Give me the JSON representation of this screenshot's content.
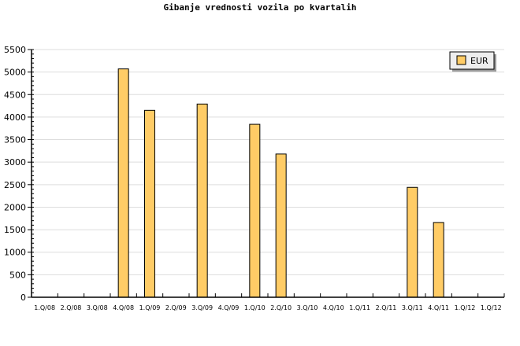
{
  "chart_data": {
    "type": "bar",
    "title": "Gibanje vrednosti vozila po kvartalih",
    "categories": [
      "1.Q/08",
      "2.Q/08",
      "3.Q/08",
      "4.Q/08",
      "1.Q/09",
      "2.Q/09",
      "3.Q/09",
      "4.Q/09",
      "1.Q/10",
      "2.Q/10",
      "3.Q/10",
      "4.Q/10",
      "1.Q/11",
      "2.Q/11",
      "3.Q/11",
      "4.Q/11",
      "1.Q/12",
      "1.Q/12"
    ],
    "series": [
      {
        "name": "EUR",
        "color": "#ffcc66",
        "values": [
          0,
          0,
          0,
          5070,
          4150,
          0,
          4290,
          0,
          3840,
          3180,
          0,
          0,
          0,
          0,
          2440,
          1660,
          0,
          0
        ]
      }
    ],
    "ylim": [
      0,
      5500
    ],
    "yticks": [
      0,
      500,
      1000,
      1500,
      2000,
      2500,
      3000,
      3500,
      4000,
      4500,
      5000,
      5500
    ],
    "grid": true,
    "legend": "top-right",
    "xlabel": "",
    "ylabel": ""
  }
}
